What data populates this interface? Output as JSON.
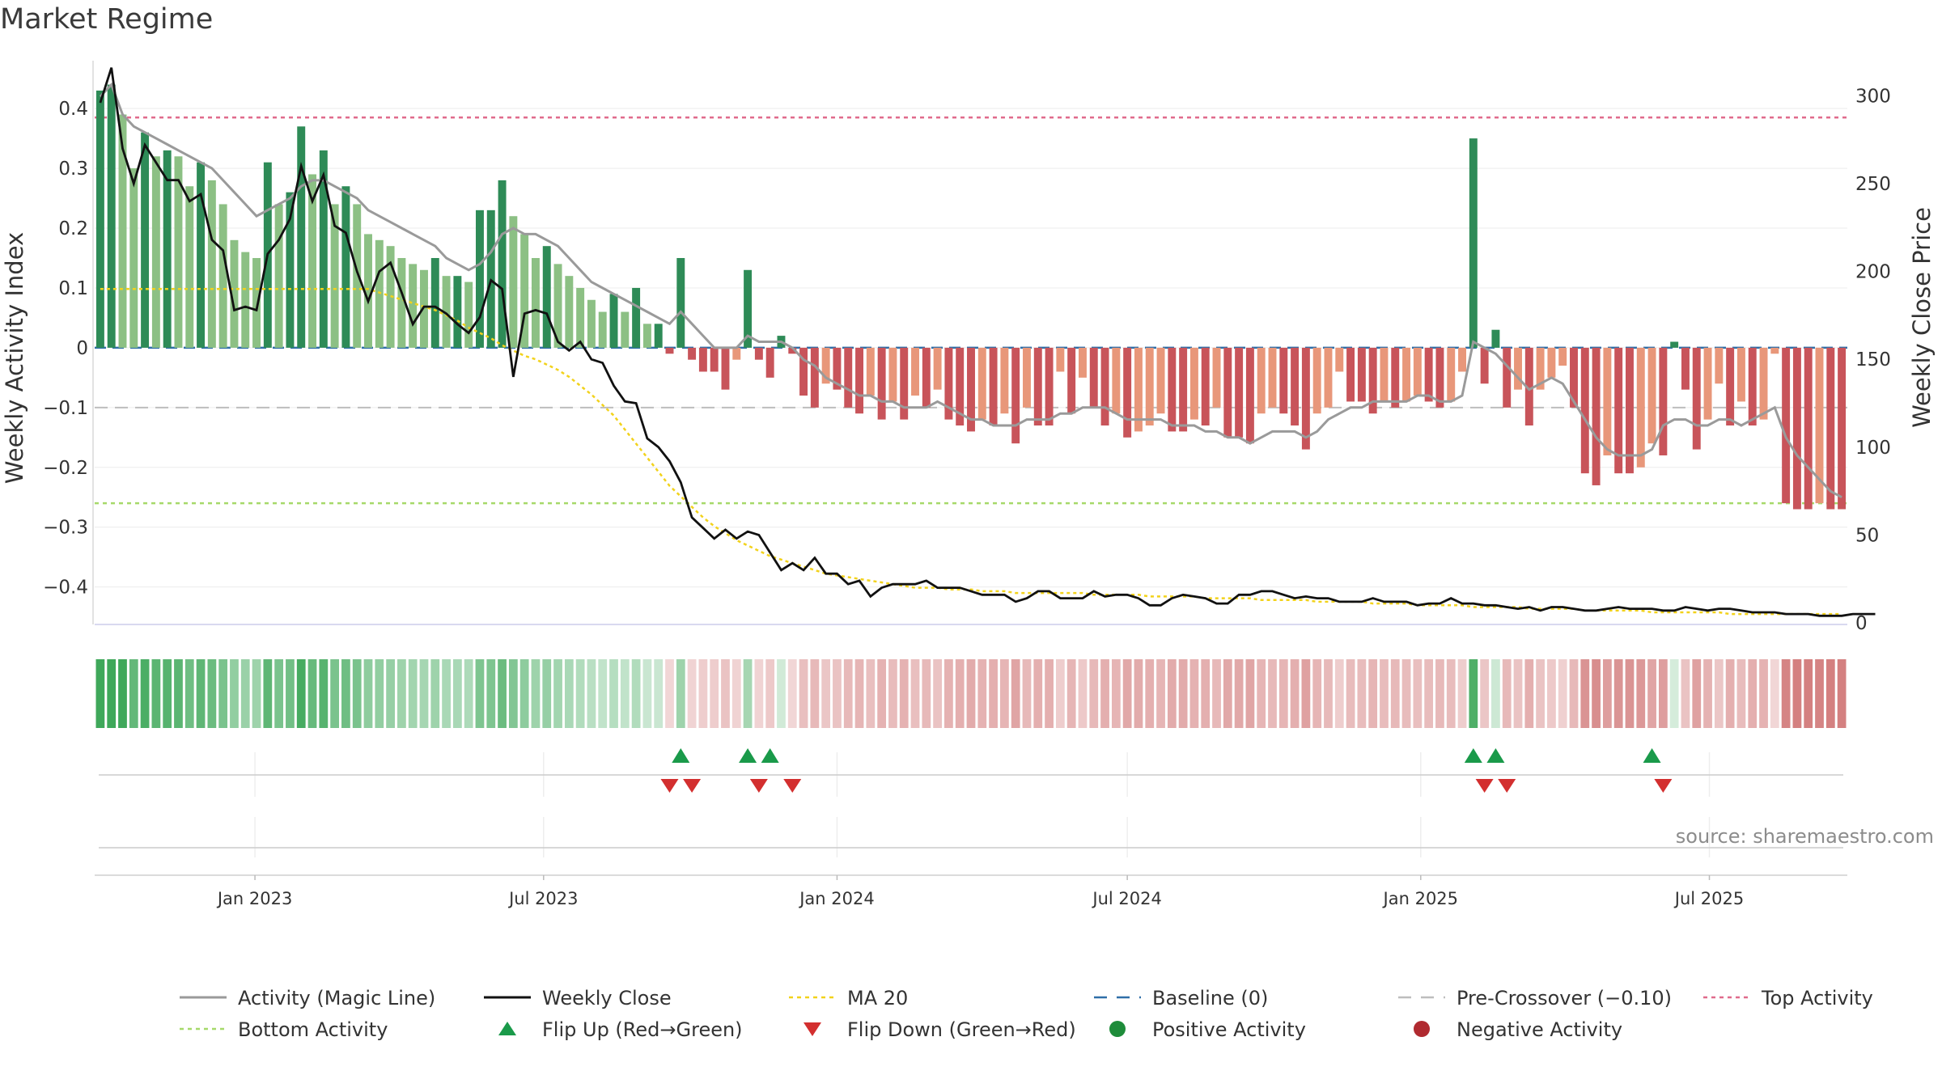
{
  "title": "Market Regime",
  "source": "source: sharemaestro.com",
  "colors": {
    "green_dark": "#2e8b57",
    "green_light": "#8cc084",
    "red_dark": "#c8545a",
    "red_light": "#e8977a",
    "magic_line": "#9a9a9a",
    "weekly_close": "#111111",
    "ma20": "#f2d21b",
    "baseline": "#2f6fa8",
    "pre_crossover": "#bdbdbd",
    "top_activity": "#e06b8c",
    "bottom_activity": "#a6d96a",
    "flip_up": "#1a9a4a",
    "flip_down": "#d32f2f"
  },
  "chart_data": {
    "type": "bar",
    "title": "Market Regime",
    "ylabel": "Weekly Activity Index",
    "y2label": "Weekly Close Price",
    "ylim": [
      -0.46,
      0.48
    ],
    "y2lim": [
      0,
      320
    ],
    "yticks": [
      0.4,
      0.3,
      0.2,
      0.1,
      0,
      -0.1,
      -0.2,
      -0.3,
      -0.4
    ],
    "ytick_labels": [
      "0.4",
      "0.3",
      "0.2",
      "0.1",
      "0",
      "−0.1",
      "−0.2",
      "−0.3",
      "−0.4"
    ],
    "y2ticks": [
      300,
      250,
      200,
      150,
      100,
      50,
      0
    ],
    "y2tick_labels": [
      "300",
      "250",
      "200",
      "150",
      "100",
      "50",
      "0"
    ],
    "x_start": "2022-09-26",
    "weeks": 157,
    "xticks": [
      "2023-01-01",
      "2023-07-01",
      "2024-01-01",
      "2024-07-01",
      "2025-01-01",
      "2025-07-01"
    ],
    "xtick_labels": [
      "Jan 2023",
      "Jul 2023",
      "Jan 2024",
      "Jul 2024",
      "Jan 2025",
      "Jul 2025"
    ],
    "grid": true,
    "legend_position": "bottom",
    "reference_lines": {
      "baseline": 0,
      "pre_crossover": -0.1,
      "top_activity": 0.385,
      "bottom_activity": -0.26
    },
    "activity": [
      0.43,
      0.44,
      0.39,
      0.3,
      0.36,
      0.32,
      0.33,
      0.32,
      0.27,
      0.31,
      0.28,
      0.24,
      0.18,
      0.16,
      0.15,
      0.31,
      0.24,
      0.26,
      0.37,
      0.29,
      0.33,
      0.24,
      0.27,
      0.24,
      0.19,
      0.18,
      0.17,
      0.15,
      0.14,
      0.13,
      0.15,
      0.12,
      0.12,
      0.11,
      0.23,
      0.23,
      0.28,
      0.22,
      0.19,
      0.15,
      0.17,
      0.14,
      0.12,
      0.1,
      0.08,
      0.06,
      0.09,
      0.06,
      0.1,
      0.04,
      0.04,
      -0.01,
      0.15,
      -0.02,
      -0.04,
      -0.04,
      -0.07,
      -0.02,
      0.13,
      -0.02,
      -0.05,
      0.02,
      -0.01,
      -0.08,
      -0.1,
      -0.06,
      -0.07,
      -0.1,
      -0.11,
      -0.08,
      -0.12,
      -0.09,
      -0.12,
      -0.08,
      -0.1,
      -0.07,
      -0.12,
      -0.13,
      -0.14,
      -0.12,
      -0.13,
      -0.11,
      -0.16,
      -0.1,
      -0.13,
      -0.13,
      -0.04,
      -0.11,
      -0.05,
      -0.1,
      -0.13,
      -0.11,
      -0.15,
      -0.14,
      -0.13,
      -0.11,
      -0.14,
      -0.14,
      -0.12,
      -0.13,
      -0.1,
      -0.15,
      -0.15,
      -0.16,
      -0.11,
      -0.1,
      -0.11,
      -0.13,
      -0.17,
      -0.11,
      -0.1,
      -0.04,
      -0.09,
      -0.09,
      -0.11,
      -0.09,
      -0.1,
      -0.09,
      -0.08,
      -0.09,
      -0.1,
      -0.09,
      -0.04,
      0.35,
      -0.06,
      0.03,
      -0.1,
      -0.07,
      -0.13,
      -0.07,
      -0.05,
      -0.03,
      -0.1,
      -0.21,
      -0.23,
      -0.18,
      -0.21,
      -0.21,
      -0.2,
      -0.16,
      -0.18,
      0.01,
      -0.07,
      -0.17,
      -0.12,
      -0.06,
      -0.13,
      -0.09,
      -0.13,
      -0.12,
      -0.01,
      -0.26,
      -0.27,
      -0.27,
      -0.26,
      -0.27,
      -0.27
    ],
    "magic_line": [
      0.42,
      0.44,
      0.39,
      0.37,
      0.36,
      0.35,
      0.34,
      0.33,
      0.32,
      0.31,
      0.3,
      0.28,
      0.26,
      0.24,
      0.22,
      0.23,
      0.24,
      0.25,
      0.27,
      0.28,
      0.28,
      0.27,
      0.26,
      0.25,
      0.23,
      0.22,
      0.21,
      0.2,
      0.19,
      0.18,
      0.17,
      0.15,
      0.14,
      0.13,
      0.14,
      0.16,
      0.19,
      0.2,
      0.19,
      0.19,
      0.18,
      0.17,
      0.15,
      0.13,
      0.11,
      0.1,
      0.09,
      0.08,
      0.07,
      0.06,
      0.05,
      0.04,
      0.06,
      0.04,
      0.02,
      0.0,
      0.0,
      0.0,
      0.02,
      0.01,
      0.01,
      0.01,
      0.0,
      -0.02,
      -0.03,
      -0.05,
      -0.06,
      -0.07,
      -0.08,
      -0.08,
      -0.09,
      -0.09,
      -0.1,
      -0.1,
      -0.1,
      -0.09,
      -0.1,
      -0.11,
      -0.12,
      -0.12,
      -0.13,
      -0.13,
      -0.13,
      -0.12,
      -0.12,
      -0.12,
      -0.11,
      -0.11,
      -0.1,
      -0.1,
      -0.1,
      -0.11,
      -0.12,
      -0.12,
      -0.12,
      -0.12,
      -0.13,
      -0.13,
      -0.13,
      -0.14,
      -0.14,
      -0.15,
      -0.15,
      -0.16,
      -0.15,
      -0.14,
      -0.14,
      -0.14,
      -0.15,
      -0.14,
      -0.12,
      -0.11,
      -0.1,
      -0.1,
      -0.09,
      -0.09,
      -0.09,
      -0.09,
      -0.08,
      -0.08,
      -0.09,
      -0.09,
      -0.08,
      0.01,
      0.0,
      -0.01,
      -0.03,
      -0.05,
      -0.07,
      -0.06,
      -0.05,
      -0.06,
      -0.09,
      -0.12,
      -0.15,
      -0.17,
      -0.18,
      -0.18,
      -0.18,
      -0.17,
      -0.13,
      -0.12,
      -0.12,
      -0.13,
      -0.13,
      -0.12,
      -0.12,
      -0.13,
      -0.12,
      -0.11,
      -0.1,
      -0.15,
      -0.18,
      -0.2,
      -0.22,
      -0.24,
      -0.25
    ],
    "weekly_close": [
      296,
      316,
      270,
      250,
      272,
      262,
      252,
      252,
      240,
      244,
      218,
      212,
      178,
      180,
      178,
      210,
      218,
      230,
      260,
      240,
      255,
      226,
      222,
      200,
      183,
      200,
      205,
      188,
      170,
      180,
      180,
      176,
      170,
      165,
      174,
      195,
      190,
      140,
      176,
      178,
      176,
      160,
      155,
      160,
      150,
      148,
      135,
      126,
      125,
      105,
      100,
      92,
      80,
      60,
      54,
      48,
      53,
      48,
      52,
      50,
      40,
      30,
      34,
      30,
      37,
      28,
      28,
      22,
      24,
      15,
      20,
      22,
      22,
      22,
      24,
      20,
      20,
      20,
      18,
      16,
      16,
      16,
      12,
      14,
      18,
      18,
      14,
      14,
      14,
      18,
      15,
      16,
      16,
      14,
      10,
      10,
      14,
      16,
      15,
      14,
      11,
      11,
      16,
      16,
      18,
      18,
      16,
      14,
      15,
      14,
      14,
      12,
      12,
      12,
      14,
      12,
      12,
      12,
      10,
      11,
      11,
      14,
      11,
      11,
      10,
      10,
      9,
      8,
      9,
      7,
      9,
      9,
      8,
      7,
      7,
      8,
      9,
      8,
      8,
      8,
      7,
      7,
      9,
      8,
      7,
      8,
      8,
      7,
      6,
      6,
      6,
      5,
      5,
      5,
      4,
      4,
      4,
      5,
      5,
      5
    ],
    "ma20": [
      190,
      190,
      190,
      190,
      190,
      190,
      190,
      190,
      190,
      190,
      190,
      190,
      190,
      190,
      190,
      190,
      190,
      190,
      190,
      190,
      190,
      190,
      190,
      190,
      190,
      188,
      186,
      184,
      182,
      180,
      178,
      175,
      172,
      168,
      165,
      162,
      158,
      155,
      152,
      150,
      147,
      144,
      140,
      135,
      130,
      124,
      118,
      110,
      102,
      94,
      86,
      78,
      72,
      66,
      60,
      55,
      51,
      47,
      44,
      41,
      38,
      36,
      34,
      32,
      30,
      28,
      27,
      26,
      25,
      24,
      23,
      22,
      21,
      20,
      20,
      20,
      19,
      19,
      19,
      18,
      18,
      18,
      17,
      17,
      17,
      17,
      17,
      17,
      17,
      16,
      16,
      16,
      16,
      16,
      15,
      15,
      15,
      15,
      15,
      14,
      14,
      14,
      14,
      14,
      13,
      13,
      13,
      13,
      13,
      12,
      12,
      12,
      12,
      12,
      11,
      11,
      11,
      11,
      10,
      10,
      10,
      10,
      10,
      9,
      9,
      9,
      9,
      9,
      8,
      8,
      8,
      8,
      8,
      7,
      7,
      7,
      7,
      7,
      7,
      6,
      6,
      6,
      6,
      6,
      6,
      6,
      5,
      5,
      5,
      5,
      5,
      5,
      5,
      5,
      5,
      5,
      5
    ],
    "flip_up_weeks": [
      52,
      58,
      60,
      123,
      125,
      139
    ],
    "flip_down_weeks": [
      51,
      53,
      59,
      62,
      124,
      126,
      140
    ],
    "legend": [
      {
        "label": "Activity (Magic Line)",
        "kind": "line",
        "color": "#9a9a9a"
      },
      {
        "label": "Weekly Close",
        "kind": "line",
        "color": "#111111"
      },
      {
        "label": "MA 20",
        "kind": "dotted",
        "color": "#f2d21b"
      },
      {
        "label": "Baseline (0)",
        "kind": "dashed",
        "color": "#2f6fa8"
      },
      {
        "label": "Pre-Crossover (−0.10)",
        "kind": "dashed",
        "color": "#bdbdbd"
      },
      {
        "label": "Top Activity",
        "kind": "dotted",
        "color": "#e06b8c"
      },
      {
        "label": "Bottom Activity",
        "kind": "dotted",
        "color": "#a6d96a"
      },
      {
        "label": "Flip Up (Red→Green)",
        "kind": "tri-up",
        "color": "#1a9a4a"
      },
      {
        "label": "Flip Down (Green→Red)",
        "kind": "tri-down",
        "color": "#d32f2f"
      },
      {
        "label": "Positive Activity",
        "kind": "dot",
        "color": "#1e8c3a"
      },
      {
        "label": "Negative Activity",
        "kind": "dot",
        "color": "#b02a30"
      }
    ]
  }
}
